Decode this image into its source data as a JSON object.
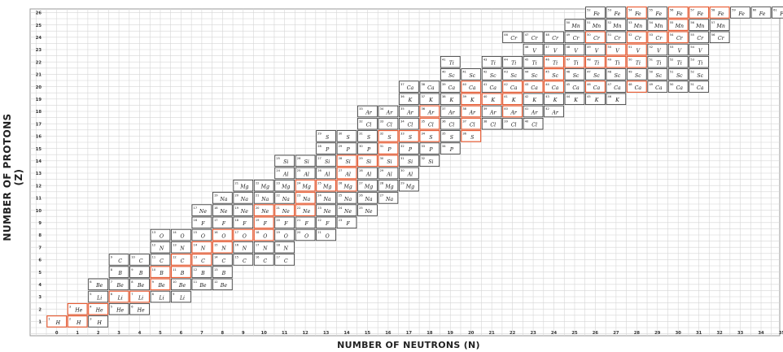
{
  "chart_data": {
    "type": "table",
    "xlabel": "NUMBER OF NEUTRONS (N)",
    "ylabel": "NUMBER OF PROTONS (Z)",
    "x_ticks": [
      0,
      1,
      2,
      3,
      4,
      5,
      6,
      7,
      8,
      9,
      10,
      11,
      12,
      13,
      14,
      15,
      16,
      17,
      18,
      19,
      20,
      21,
      22,
      23,
      24,
      25,
      26,
      27,
      28,
      29,
      30,
      31,
      32,
      33,
      34,
      35
    ],
    "y_ticks": [
      1,
      2,
      3,
      4,
      5,
      6,
      7,
      8,
      9,
      10,
      11,
      12,
      13,
      14,
      15,
      16,
      17,
      18,
      19,
      20,
      21,
      22,
      23,
      24,
      25,
      26
    ],
    "elements": {
      "1": "H",
      "2": "He",
      "3": "Li",
      "4": "Be",
      "5": "B",
      "6": "C",
      "7": "N",
      "8": "O",
      "9": "F",
      "10": "Ne",
      "11": "Na",
      "12": "Mg",
      "13": "Al",
      "14": "Si",
      "15": "P",
      "16": "S",
      "17": "Cl",
      "18": "Ar",
      "19": "K",
      "20": "Ca",
      "21": "Sc",
      "22": "Ti",
      "23": "V",
      "24": "Cr",
      "25": "Mn",
      "26": "Fe"
    },
    "colors": {
      "stable": "#e8552b",
      "unstable": "#333333",
      "grid": "#d6d6d6"
    },
    "rows": [
      {
        "z": 1,
        "n": [
          0,
          1,
          2
        ],
        "stable": [
          0,
          1
        ]
      },
      {
        "z": 2,
        "n": [
          1,
          2,
          3,
          4
        ],
        "stable": [
          1,
          2
        ]
      },
      {
        "z": 3,
        "n": [
          2,
          3,
          4,
          5,
          6
        ],
        "stable": [
          3,
          4
        ]
      },
      {
        "z": 4,
        "n": [
          2,
          3,
          4,
          5,
          6,
          7,
          8
        ],
        "stable": [
          5
        ]
      },
      {
        "z": 5,
        "n": [
          3,
          4,
          5,
          6,
          7,
          8
        ],
        "stable": [
          5,
          6
        ]
      },
      {
        "z": 6,
        "n": [
          3,
          4,
          5,
          6,
          7,
          8,
          9,
          10,
          11
        ],
        "stable": [
          6,
          7
        ]
      },
      {
        "z": 7,
        "n": [
          5,
          6,
          7,
          8,
          9,
          10,
          11
        ],
        "stable": [
          7,
          8
        ]
      },
      {
        "z": 8,
        "n": [
          5,
          6,
          7,
          8,
          9,
          10,
          11,
          12,
          13
        ],
        "stable": [
          8,
          9,
          10
        ]
      },
      {
        "z": 9,
        "n": [
          7,
          8,
          9,
          10,
          11,
          12,
          13,
          14
        ],
        "stable": [
          10
        ]
      },
      {
        "z": 10,
        "n": [
          7,
          8,
          9,
          10,
          11,
          12,
          13,
          14,
          15
        ],
        "stable": [
          10,
          11,
          12
        ]
      },
      {
        "z": 11,
        "n": [
          8,
          9,
          10,
          11,
          12,
          13,
          14,
          15,
          16
        ],
        "stable": [
          12
        ]
      },
      {
        "z": 12,
        "n": [
          9,
          10,
          11,
          12,
          13,
          14,
          15,
          16,
          17
        ],
        "stable": [
          12,
          13,
          14
        ]
      },
      {
        "z": 13,
        "n": [
          11,
          12,
          13,
          14,
          15,
          16,
          17
        ],
        "stable": [
          14
        ]
      },
      {
        "z": 14,
        "n": [
          11,
          12,
          13,
          14,
          15,
          16,
          17,
          18
        ],
        "stable": [
          14,
          15,
          16
        ]
      },
      {
        "z": 15,
        "n": [
          13,
          14,
          15,
          16,
          17,
          18,
          19
        ],
        "stable": [
          16
        ]
      },
      {
        "z": 16,
        "n": [
          13,
          14,
          15,
          16,
          17,
          18,
          19,
          20
        ],
        "stable": [
          16,
          17,
          18,
          20
        ]
      },
      {
        "z": 17,
        "n": [
          15,
          16,
          17,
          18,
          19,
          20,
          21,
          22,
          23
        ],
        "stable": [
          18,
          20
        ]
      },
      {
        "z": 18,
        "n": [
          15,
          16,
          17,
          18,
          19,
          20,
          21,
          22,
          23,
          24
        ],
        "stable": [
          18,
          20,
          22
        ]
      },
      {
        "z": 19,
        "n": [
          17,
          18,
          19,
          20,
          21,
          22,
          23,
          24,
          25,
          26,
          27
        ],
        "stable": [
          20,
          21,
          22
        ]
      },
      {
        "z": 20,
        "n": [
          17,
          18,
          19,
          20,
          21,
          22,
          23,
          24,
          25,
          26,
          27,
          28,
          29,
          30,
          31
        ],
        "stable": [
          20,
          22,
          23,
          24,
          26,
          28
        ]
      },
      {
        "z": 21,
        "n": [
          19,
          20,
          21,
          22,
          23,
          24,
          25,
          26,
          27,
          28,
          29,
          30,
          31
        ],
        "stable": [
          24
        ]
      },
      {
        "z": 22,
        "n": [
          19,
          21,
          22,
          23,
          24,
          25,
          26,
          27,
          28,
          29,
          30,
          31
        ],
        "stable": [
          24,
          25,
          26,
          27,
          28
        ]
      },
      {
        "z": 23,
        "n": [
          23,
          24,
          25,
          26,
          27,
          28,
          29,
          30,
          31
        ],
        "stable": [
          27,
          28
        ]
      },
      {
        "z": 24,
        "n": [
          22,
          23,
          24,
          25,
          26,
          27,
          28,
          29,
          30,
          31,
          32
        ],
        "stable": [
          26,
          28,
          29,
          30
        ]
      },
      {
        "z": 25,
        "n": [
          25,
          26,
          27,
          28,
          29,
          30,
          31,
          32
        ],
        "stable": [
          30
        ]
      },
      {
        "z": 26,
        "n": [
          26,
          27,
          28,
          29,
          30,
          31,
          32,
          33,
          34,
          35
        ],
        "stable": [
          28,
          30,
          31,
          32
        ]
      }
    ]
  }
}
